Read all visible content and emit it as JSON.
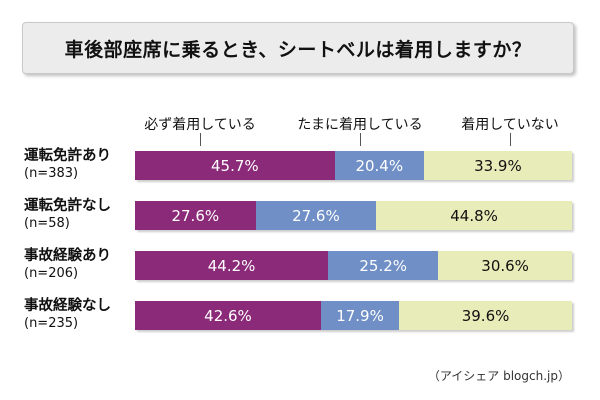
{
  "chart_data": {
    "type": "bar",
    "orientation": "horizontal",
    "stacked": true,
    "percent_stacked": true,
    "title": "車後部座席に乗るとき、シートベルは着用しますか？",
    "categories": [
      {
        "label": "運転免許あり",
        "n": "(n=383)"
      },
      {
        "label": "運転免許なし",
        "n": "(n=58)"
      },
      {
        "label": "事故経験あり",
        "n": "(n=206)"
      },
      {
        "label": "事故経験なし",
        "n": "(n=235)"
      }
    ],
    "series": [
      {
        "name": "必ず着用している",
        "color": "#8b2a78",
        "values": [
          45.7,
          27.6,
          44.2,
          42.6
        ]
      },
      {
        "name": "たまに着用している",
        "color": "#6f8fc6",
        "values": [
          20.4,
          27.6,
          25.2,
          17.9
        ]
      },
      {
        "name": "着用していない",
        "color": "#e8ecb8",
        "values": [
          33.9,
          44.8,
          30.6,
          39.6
        ]
      }
    ],
    "value_suffix": "%",
    "legend_placement": "top",
    "grid": false
  },
  "source_credit": "（アイシェア blogch.jp）"
}
